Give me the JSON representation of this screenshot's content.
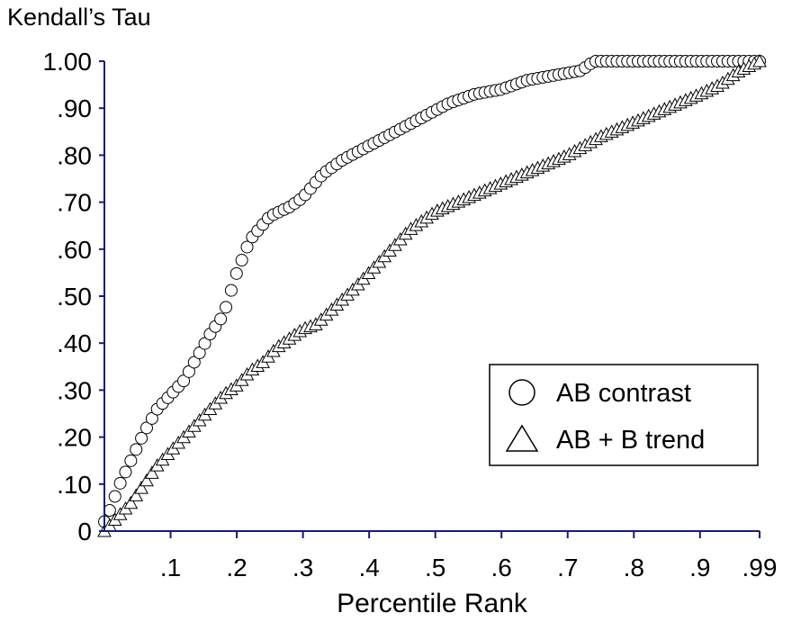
{
  "chart_data": {
    "type": "scatter",
    "title": "",
    "xlabel": "Percentile Rank",
    "ylabel": "Kendall’s Tau",
    "xlim": [
      0,
      0.99
    ],
    "ylim": [
      0,
      1.0
    ],
    "x_ticks": [
      0.1,
      0.2,
      0.3,
      0.4,
      0.5,
      0.6,
      0.7,
      0.8,
      0.9,
      0.99
    ],
    "x_tick_labels": [
      ".1",
      ".2",
      ".3",
      ".4",
      ".5",
      ".6",
      ".7",
      ".8",
      ".9",
      ".99"
    ],
    "y_ticks": [
      0,
      0.1,
      0.2,
      0.3,
      0.4,
      0.5,
      0.6,
      0.7,
      0.8,
      0.9,
      1.0
    ],
    "y_tick_labels": [
      "0",
      ".10",
      ".20",
      ".30",
      ".40",
      ".50",
      ".60",
      ".70",
      ".80",
      ".90",
      "1.00"
    ],
    "grid": false,
    "legend_position": "right",
    "axis_color": "#1a1a7a",
    "series": [
      {
        "name": "AB contrast",
        "marker": "circle",
        "curve": [
          [
            0.0,
            0.02
          ],
          [
            0.01,
            0.05
          ],
          [
            0.02,
            0.09
          ],
          [
            0.03,
            0.12
          ],
          [
            0.04,
            0.15
          ],
          [
            0.05,
            0.18
          ],
          [
            0.06,
            0.21
          ],
          [
            0.08,
            0.26
          ],
          [
            0.1,
            0.29
          ],
          [
            0.12,
            0.32
          ],
          [
            0.14,
            0.37
          ],
          [
            0.16,
            0.42
          ],
          [
            0.18,
            0.46
          ],
          [
            0.2,
            0.55
          ],
          [
            0.22,
            0.62
          ],
          [
            0.25,
            0.67
          ],
          [
            0.28,
            0.69
          ],
          [
            0.3,
            0.71
          ],
          [
            0.33,
            0.76
          ],
          [
            0.36,
            0.79
          ],
          [
            0.4,
            0.82
          ],
          [
            0.44,
            0.85
          ],
          [
            0.48,
            0.88
          ],
          [
            0.52,
            0.91
          ],
          [
            0.56,
            0.93
          ],
          [
            0.6,
            0.94
          ],
          [
            0.64,
            0.96
          ],
          [
            0.68,
            0.97
          ],
          [
            0.72,
            0.98
          ],
          [
            0.74,
            1.0
          ],
          [
            0.99,
            1.0
          ]
        ]
      },
      {
        "name": "AB + B trend",
        "marker": "triangle",
        "curve": [
          [
            0.0,
            0.0
          ],
          [
            0.02,
            0.03
          ],
          [
            0.04,
            0.06
          ],
          [
            0.06,
            0.1
          ],
          [
            0.08,
            0.14
          ],
          [
            0.1,
            0.17
          ],
          [
            0.12,
            0.2
          ],
          [
            0.14,
            0.23
          ],
          [
            0.16,
            0.26
          ],
          [
            0.18,
            0.29
          ],
          [
            0.2,
            0.31
          ],
          [
            0.22,
            0.34
          ],
          [
            0.24,
            0.36
          ],
          [
            0.26,
            0.39
          ],
          [
            0.28,
            0.41
          ],
          [
            0.3,
            0.43
          ],
          [
            0.32,
            0.44
          ],
          [
            0.35,
            0.48
          ],
          [
            0.38,
            0.52
          ],
          [
            0.4,
            0.55
          ],
          [
            0.42,
            0.58
          ],
          [
            0.44,
            0.61
          ],
          [
            0.46,
            0.64
          ],
          [
            0.48,
            0.66
          ],
          [
            0.5,
            0.68
          ],
          [
            0.55,
            0.71
          ],
          [
            0.6,
            0.74
          ],
          [
            0.65,
            0.77
          ],
          [
            0.7,
            0.8
          ],
          [
            0.75,
            0.84
          ],
          [
            0.8,
            0.87
          ],
          [
            0.85,
            0.9
          ],
          [
            0.9,
            0.93
          ],
          [
            0.93,
            0.95
          ],
          [
            0.96,
            0.98
          ],
          [
            0.99,
            1.0
          ]
        ]
      }
    ]
  }
}
